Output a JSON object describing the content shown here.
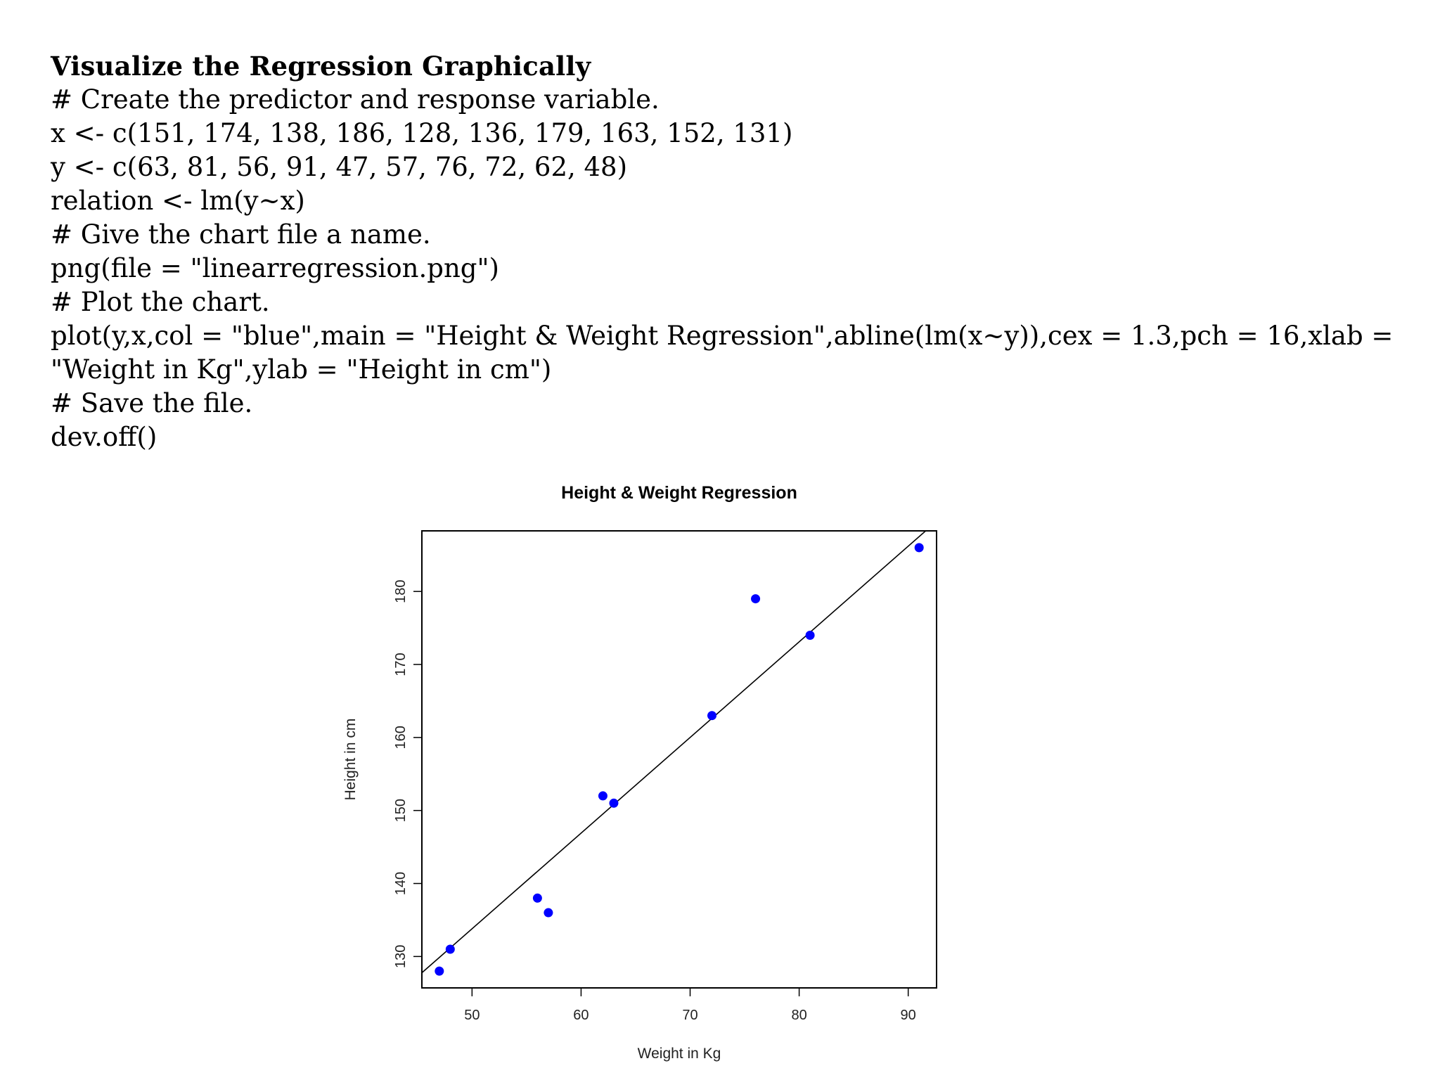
{
  "document": {
    "title": "Visualize the Regression Graphically",
    "lines": [
      "# Create the predictor and response variable.",
      "x <- c(151, 174, 138, 186, 128, 136, 179, 163, 152, 131)",
      "y <- c(63, 81, 56, 91, 47, 57, 76, 72, 62, 48)",
      "relation <- lm(y~x)",
      "# Give the chart file a name.",
      "png(file = \"linearregression.png\")",
      "# Plot the chart.",
      "plot(y,x,col = \"blue\",main = \"Height & Weight Regression\",abline(lm(x~y)),cex = 1.3,pch = 16,xlab = \"Weight in Kg\",ylab = \"Height in cm\")",
      "# Save the file.",
      "dev.off()"
    ]
  },
  "chart_data": {
    "type": "scatter",
    "title": "Height & Weight Regression",
    "xlabel": "Weight in Kg",
    "ylabel": "Height in cm",
    "xlim": [
      45.4,
      92.6
    ],
    "ylim": [
      125.7,
      188.3
    ],
    "x_ticks": [
      50,
      60,
      70,
      80,
      90
    ],
    "y_ticks": [
      130,
      140,
      150,
      160,
      170,
      180
    ],
    "grid": false,
    "point_color": "#0000ff",
    "line_color": "#000000",
    "series": [
      {
        "x": [
          63,
          81,
          56,
          91,
          47,
          57,
          76,
          72,
          62,
          48
        ],
        "y": [
          151,
          174,
          138,
          186,
          128,
          136,
          179,
          163,
          152,
          131
        ]
      }
    ],
    "regression_line": {
      "intercept": 68.3,
      "slope": 1.31
    }
  }
}
